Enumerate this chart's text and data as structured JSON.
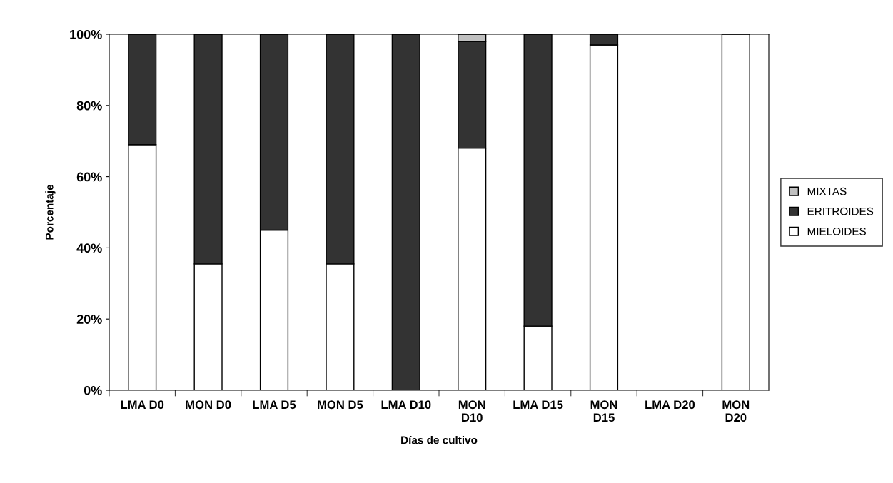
{
  "chart_data": {
    "type": "bar",
    "stacked": true,
    "xlabel": "Días de cultivo",
    "ylabel": "Porcentaje",
    "categories": [
      "LMA D0",
      "MON D0",
      "LMA D5",
      "MON D5",
      "LMA D10",
      "MON\nD10",
      "LMA D15",
      "MON\nD15",
      "LMA D20",
      "MON\nD20"
    ],
    "series": [
      {
        "name": "MIELOIDES",
        "color": "#ffffff",
        "values": [
          69,
          35.5,
          45,
          35.5,
          0,
          68,
          18,
          97,
          0,
          100
        ]
      },
      {
        "name": "ERITROIDES",
        "color": "#333333",
        "values": [
          31,
          64.5,
          55,
          64.5,
          100,
          30,
          82,
          3,
          0,
          0
        ]
      },
      {
        "name": "MIXTAS",
        "color": "#c0c0c0",
        "values": [
          0,
          0,
          0,
          0,
          0,
          2,
          0,
          0,
          0,
          0
        ]
      }
    ],
    "ylim": [
      0,
      100
    ],
    "yticks": [
      {
        "value": 0,
        "label": "0%"
      },
      {
        "value": 20,
        "label": "20%"
      },
      {
        "value": 40,
        "label": "40%"
      },
      {
        "value": 60,
        "label": "60%"
      },
      {
        "value": 80,
        "label": "80%"
      },
      {
        "value": 100,
        "label": "100%"
      }
    ],
    "grid": false,
    "legend": "right"
  }
}
